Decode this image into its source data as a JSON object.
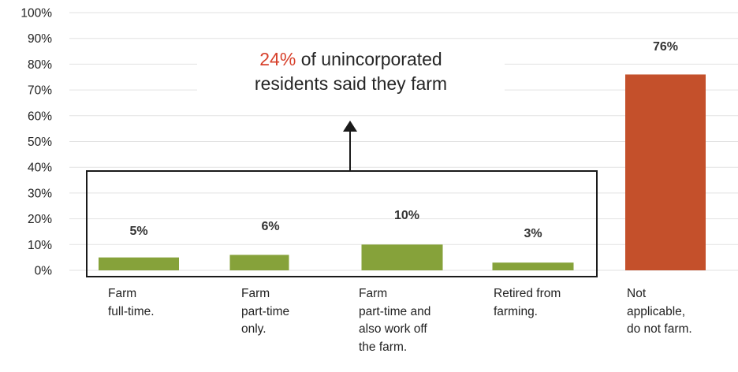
{
  "colors": {
    "farm": "#86a23a",
    "not_farm": "#c4502b",
    "highlight": "#d7402b",
    "grid": "#e2e2e2"
  },
  "annotation": {
    "highlight": "24%",
    "line1_rest": " of unincorporated",
    "line2": "residents said they farm"
  },
  "chart_data": {
    "type": "bar",
    "title": "",
    "xlabel": "",
    "ylabel": "",
    "ylim": [
      0,
      100
    ],
    "yticks": [
      "0%",
      "10%",
      "20%",
      "30%",
      "40%",
      "50%",
      "60%",
      "70%",
      "80%",
      "90%",
      "100%"
    ],
    "grid": true,
    "categories": [
      "Farm\nfull-time.",
      "Farm\npart-time\nonly.",
      "Farm\npart-time and\nalso work off\nthe farm.",
      "Retired from\nfarming.",
      "Not\napplicable,\ndo not farm."
    ],
    "values": [
      5,
      6,
      10,
      3,
      76
    ],
    "data_labels": [
      "5%",
      "6%",
      "10%",
      "3%",
      "76%"
    ],
    "bar_colors": [
      "#86a23a",
      "#86a23a",
      "#86a23a",
      "#86a23a",
      "#c4502b"
    ]
  }
}
